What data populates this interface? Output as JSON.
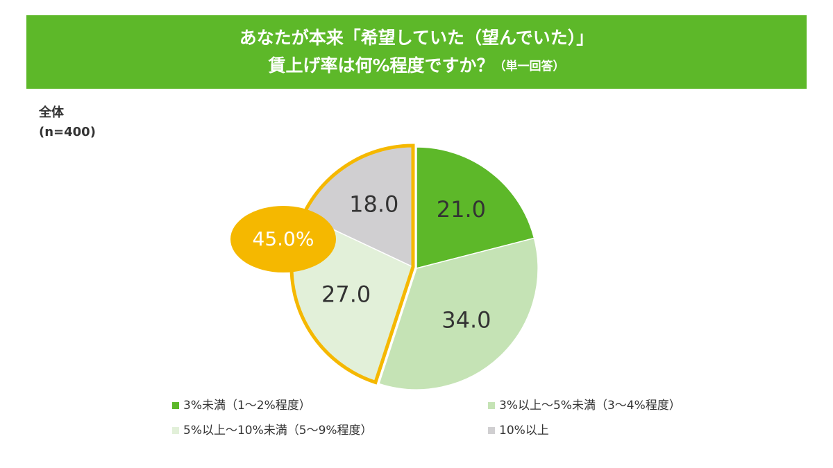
{
  "chart_data": {
    "type": "pie",
    "title": [
      "あなたが本来「希望していた（望んでいた）」",
      "賃上げ率は何%程度ですか？"
    ],
    "title_note": "（単一回答）",
    "group_label": [
      "全体",
      "(n=400)"
    ],
    "categories": [
      "3%未満（1～2%程度）",
      "3%以上～5%未満（3～4%程度）",
      "5%以上～10%未満（5～9%程度）",
      "10%以上"
    ],
    "values": [
      21,
      34,
      27,
      18
    ],
    "value_labels": [
      "21.0",
      "34.0",
      "27.0",
      "18.0"
    ],
    "colors": [
      "#5db829",
      "#c5e3b5",
      "#e2f0d9",
      "#d0cfd1"
    ],
    "annotation": "45.0%",
    "annotation_color": "#f5b800",
    "legend": "bottom"
  }
}
